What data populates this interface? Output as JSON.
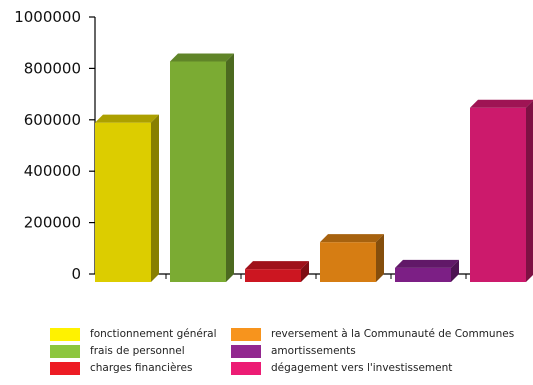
{
  "chart_data": {
    "type": "bar",
    "title": "",
    "xlabel": "",
    "ylabel": "",
    "ylim": [
      0,
      1000000
    ],
    "yticks": [
      0,
      200000,
      400000,
      600000,
      800000,
      1000000
    ],
    "ytick_labels": [
      "0",
      "200000",
      "400000",
      "600000",
      "800000",
      "1000000"
    ],
    "grid": false,
    "style": "3d",
    "legend_position": "bottom",
    "series": [
      {
        "name": "fonctionnement général",
        "value": 620000,
        "color": "#dccd00"
      },
      {
        "name": "frais de personnel",
        "value": 858000,
        "color": "#7bab33"
      },
      {
        "name": "charges financières",
        "value": 50000,
        "color": "#cc1621"
      },
      {
        "name": "reversement à la Communauté de Communes",
        "value": 155000,
        "color": "#d67d13"
      },
      {
        "name": "amortissements",
        "value": 55000,
        "color": "#7c1f85"
      },
      {
        "name": "dégagement vers l'investissement",
        "value": 678000,
        "color": "#cc1a6c"
      }
    ],
    "legend_swatch_colors": [
      "#fff200",
      "#8dc63f",
      "#ed1c24",
      "#f7941d",
      "#92278f",
      "#ec1c74"
    ]
  }
}
